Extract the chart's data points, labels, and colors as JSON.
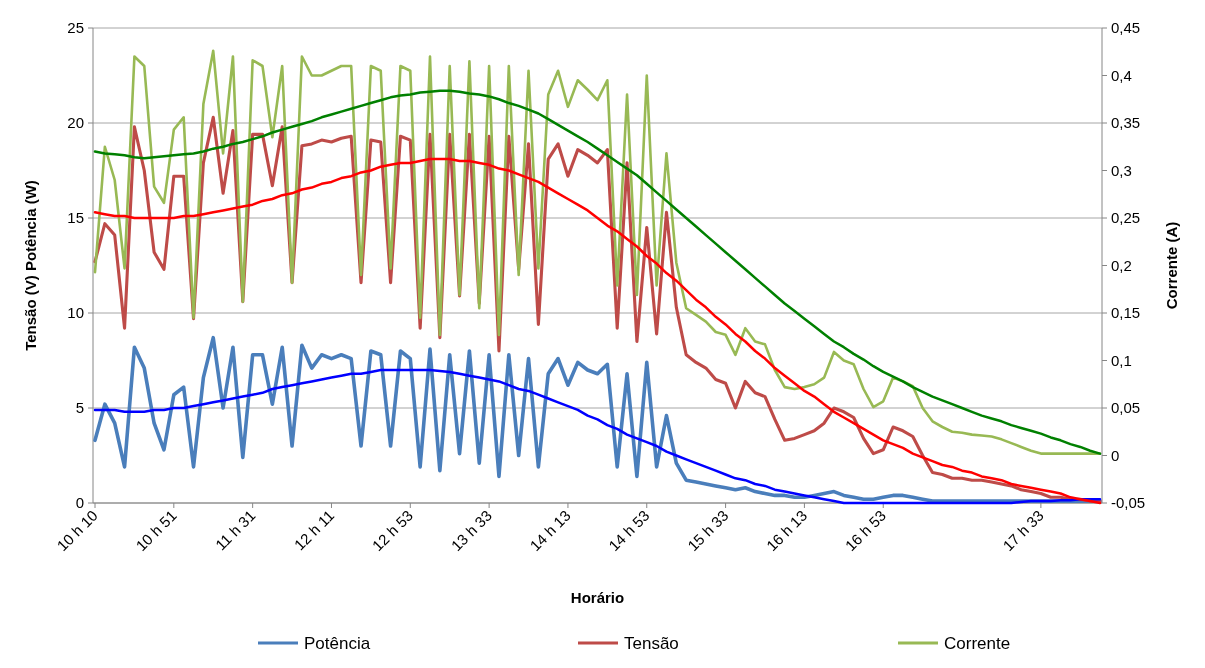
{
  "chart_data": {
    "type": "line",
    "xlabel": "Horário",
    "ylabel": "Tensão (V) Potência (W)",
    "y2label": "Corrente (A)",
    "categories": [
      "10 h 10",
      null,
      null,
      null,
      null,
      null,
      null,
      null,
      "10 h 51",
      null,
      null,
      null,
      null,
      null,
      null,
      null,
      "11 h 31",
      null,
      null,
      null,
      null,
      null,
      null,
      null,
      "12 h 11",
      null,
      null,
      null,
      null,
      null,
      null,
      null,
      "12 h 53",
      null,
      null,
      null,
      null,
      null,
      null,
      null,
      "13 h 33",
      null,
      null,
      null,
      null,
      null,
      null,
      null,
      "14 h 13",
      null,
      null,
      null,
      null,
      null,
      null,
      null,
      "14 h 53",
      null,
      null,
      null,
      null,
      null,
      null,
      null,
      "15 h 33",
      null,
      null,
      null,
      null,
      null,
      null,
      null,
      "16 h 13",
      null,
      null,
      null,
      null,
      null,
      null,
      null,
      "16 h 53",
      null,
      null,
      null,
      null,
      null,
      null,
      null,
      null,
      null,
      null,
      null,
      null,
      null,
      null,
      null,
      "17 h 33",
      null,
      null,
      null,
      null,
      null,
      null
    ],
    "ylim": [
      0,
      25
    ],
    "yticks": [
      0,
      5,
      10,
      15,
      20,
      25
    ],
    "y2lim": [
      -0.05,
      0.45
    ],
    "y2ticks": [
      {
        "value": -0.05,
        "label": "-0,05"
      },
      {
        "value": 0,
        "label": "0"
      },
      {
        "value": 0.05,
        "label": "0,05"
      },
      {
        "value": 0.1,
        "label": "0,1"
      },
      {
        "value": 0.15,
        "label": "0,15"
      },
      {
        "value": 0.2,
        "label": "0,2"
      },
      {
        "value": 0.25,
        "label": "0,25"
      },
      {
        "value": 0.3,
        "label": "0,3"
      },
      {
        "value": 0.35,
        "label": "0,35"
      },
      {
        "value": 0.4,
        "label": "0,4"
      },
      {
        "value": 0.45,
        "label": "0,45"
      }
    ],
    "grid": "y",
    "legend": "bottom",
    "series": [
      {
        "name": "Potência",
        "color": "#4a7ebb",
        "values": [
          3.3,
          5.2,
          4.2,
          1.9,
          8.2,
          7.1,
          4.2,
          2.8,
          5.7,
          6.1,
          1.9,
          6.6,
          8.7,
          5.0,
          8.2,
          2.4,
          7.8,
          7.8,
          5.2,
          8.2,
          3.0,
          8.3,
          7.1,
          7.8,
          7.6,
          7.8,
          7.6,
          3.0,
          8.0,
          7.8,
          3.0,
          8.0,
          7.6,
          1.9,
          8.1,
          1.7,
          7.8,
          2.6,
          8.0,
          2.1,
          7.8,
          1.4,
          7.8,
          2.5,
          7.6,
          1.9,
          6.8,
          7.6,
          6.2,
          7.4,
          7.0,
          6.8,
          7.3,
          1.9,
          6.8,
          1.4,
          7.4,
          1.9,
          4.6,
          2.1,
          1.2,
          1.1,
          1.0,
          0.9,
          0.8,
          0.7,
          0.8,
          0.6,
          0.5,
          0.4,
          0.4,
          0.3,
          0.3,
          0.4,
          0.5,
          0.6,
          0.4,
          0.3,
          0.2,
          0.2,
          0.3,
          0.4,
          0.4,
          0.3,
          0.2,
          0.1,
          0.1,
          0.1,
          0.1,
          0.1,
          0.1,
          0.1,
          0.1,
          0.1,
          0.1,
          0.1,
          0.1,
          0.1,
          0.1,
          0.1,
          0.1,
          0.1,
          0.1
        ]
      },
      {
        "name": "Tensão",
        "color": "#be4b48",
        "values": [
          12.7,
          14.7,
          14.1,
          9.2,
          19.8,
          17.5,
          13.2,
          12.3,
          17.2,
          17.2,
          9.7,
          17.9,
          20.3,
          16.3,
          19.6,
          10.6,
          19.4,
          19.4,
          16.7,
          19.8,
          11.6,
          18.8,
          18.9,
          19.1,
          19.0,
          19.2,
          19.3,
          11.6,
          19.1,
          19.0,
          11.6,
          19.3,
          19.1,
          9.2,
          19.4,
          8.7,
          19.4,
          10.9,
          19.4,
          10.5,
          19.3,
          8.0,
          19.3,
          12.3,
          18.9,
          9.4,
          18.1,
          18.9,
          17.2,
          18.6,
          18.3,
          17.9,
          18.6,
          9.2,
          17.9,
          8.5,
          14.5,
          8.9,
          15.3,
          10.3,
          7.8,
          7.4,
          7.1,
          6.5,
          6.3,
          5.0,
          6.4,
          5.8,
          5.6,
          4.4,
          3.3,
          3.4,
          3.6,
          3.8,
          4.2,
          5.0,
          4.8,
          4.5,
          3.4,
          2.6,
          2.8,
          4.0,
          3.8,
          3.5,
          2.5,
          1.6,
          1.5,
          1.3,
          1.3,
          1.2,
          1.2,
          1.1,
          1.0,
          0.9,
          0.7,
          0.6,
          0.5,
          0.3,
          0.3,
          0.2,
          0.2,
          0.1,
          0.1
        ]
      },
      {
        "name": "Corrente",
        "color": "#98b954",
        "axis": "y2",
        "values": [
          0.193,
          0.325,
          0.29,
          0.197,
          0.42,
          0.41,
          0.283,
          0.266,
          0.343,
          0.356,
          0.145,
          0.37,
          0.426,
          0.318,
          0.42,
          0.162,
          0.416,
          0.41,
          0.335,
          0.41,
          0.182,
          0.42,
          0.4,
          0.4,
          0.405,
          0.41,
          0.41,
          0.19,
          0.41,
          0.405,
          0.197,
          0.41,
          0.405,
          0.145,
          0.42,
          0.127,
          0.41,
          0.169,
          0.415,
          0.155,
          0.41,
          0.127,
          0.41,
          0.19,
          0.405,
          0.197,
          0.38,
          0.405,
          0.367,
          0.395,
          0.385,
          0.374,
          0.395,
          0.179,
          0.38,
          0.169,
          0.4,
          0.179,
          0.318,
          0.203,
          0.155,
          0.148,
          0.141,
          0.13,
          0.127,
          0.106,
          0.134,
          0.12,
          0.117,
          0.09,
          0.072,
          0.07,
          0.072,
          0.075,
          0.082,
          0.109,
          0.1,
          0.096,
          0.07,
          0.051,
          0.057,
          0.082,
          0.078,
          0.073,
          0.05,
          0.036,
          0.03,
          0.025,
          0.024,
          0.022,
          0.021,
          0.02,
          0.017,
          0.013,
          0.009,
          0.005,
          0.002,
          0.002,
          0.002,
          0.002,
          0.002,
          0.002,
          0.002
        ]
      },
      {
        "color": "#0000ff",
        "values": [
          4.9,
          4.9,
          4.9,
          4.8,
          4.8,
          4.8,
          4.9,
          4.9,
          5.0,
          5.0,
          5.1,
          5.2,
          5.3,
          5.4,
          5.5,
          5.6,
          5.7,
          5.8,
          6.0,
          6.1,
          6.2,
          6.3,
          6.4,
          6.5,
          6.6,
          6.7,
          6.8,
          6.8,
          6.9,
          7.0,
          7.0,
          7.0,
          7.0,
          7.0,
          7.0,
          6.95,
          6.9,
          6.8,
          6.7,
          6.6,
          6.5,
          6.4,
          6.2,
          6.0,
          5.9,
          5.7,
          5.5,
          5.3,
          5.1,
          4.9,
          4.6,
          4.4,
          4.1,
          3.9,
          3.6,
          3.4,
          3.2,
          3.0,
          2.7,
          2.5,
          2.3,
          2.1,
          1.9,
          1.7,
          1.5,
          1.3,
          1.2,
          1.0,
          0.9,
          0.7,
          0.6,
          0.5,
          0.4,
          0.3,
          0.2,
          0.1,
          0,
          0,
          0,
          0,
          0,
          0,
          0,
          0,
          0,
          0,
          0,
          0,
          0,
          0,
          0,
          0,
          0,
          0,
          0.05,
          0.1,
          0.1,
          0.1,
          0.15,
          0.15,
          0.2,
          0.2,
          0.2
        ]
      },
      {
        "color": "#ff0000",
        "values": [
          15.3,
          15.2,
          15.1,
          15.1,
          15.0,
          15.0,
          15.0,
          15.0,
          15.0,
          15.1,
          15.1,
          15.2,
          15.3,
          15.4,
          15.5,
          15.6,
          15.7,
          15.9,
          16.0,
          16.2,
          16.3,
          16.5,
          16.6,
          16.8,
          16.9,
          17.1,
          17.2,
          17.4,
          17.5,
          17.7,
          17.8,
          17.9,
          17.9,
          18.0,
          18.1,
          18.1,
          18.1,
          18.0,
          18.0,
          17.9,
          17.8,
          17.6,
          17.5,
          17.3,
          17.1,
          16.9,
          16.6,
          16.3,
          16.0,
          15.7,
          15.4,
          15.0,
          14.6,
          14.3,
          13.9,
          13.5,
          13.0,
          12.6,
          12.1,
          11.7,
          11.2,
          10.7,
          10.3,
          9.8,
          9.4,
          8.9,
          8.5,
          8.0,
          7.6,
          7.1,
          6.7,
          6.3,
          5.9,
          5.6,
          5.2,
          4.8,
          4.5,
          4.2,
          3.9,
          3.6,
          3.3,
          3.1,
          2.9,
          2.6,
          2.4,
          2.2,
          2.0,
          1.9,
          1.7,
          1.6,
          1.4,
          1.3,
          1.2,
          1.0,
          0.9,
          0.8,
          0.7,
          0.6,
          0.5,
          0.3,
          0.2,
          0.1,
          0
        ]
      },
      {
        "color": "#008000",
        "axis": "y2",
        "values": [
          0.32,
          0.318,
          0.317,
          0.316,
          0.314,
          0.313,
          0.314,
          0.315,
          0.316,
          0.317,
          0.318,
          0.32,
          0.323,
          0.325,
          0.328,
          0.33,
          0.333,
          0.336,
          0.34,
          0.343,
          0.346,
          0.349,
          0.352,
          0.356,
          0.359,
          0.362,
          0.365,
          0.368,
          0.371,
          0.374,
          0.377,
          0.379,
          0.38,
          0.382,
          0.383,
          0.384,
          0.384,
          0.383,
          0.381,
          0.38,
          0.378,
          0.375,
          0.371,
          0.368,
          0.364,
          0.36,
          0.354,
          0.348,
          0.342,
          0.336,
          0.33,
          0.323,
          0.316,
          0.309,
          0.302,
          0.295,
          0.286,
          0.277,
          0.268,
          0.259,
          0.25,
          0.241,
          0.232,
          0.223,
          0.214,
          0.205,
          0.196,
          0.187,
          0.178,
          0.169,
          0.16,
          0.152,
          0.144,
          0.136,
          0.128,
          0.12,
          0.114,
          0.107,
          0.101,
          0.094,
          0.088,
          0.083,
          0.078,
          0.072,
          0.067,
          0.062,
          0.058,
          0.054,
          0.05,
          0.046,
          0.042,
          0.039,
          0.036,
          0.032,
          0.029,
          0.026,
          0.023,
          0.019,
          0.016,
          0.012,
          0.009,
          0.005,
          0.002
        ]
      }
    ]
  }
}
